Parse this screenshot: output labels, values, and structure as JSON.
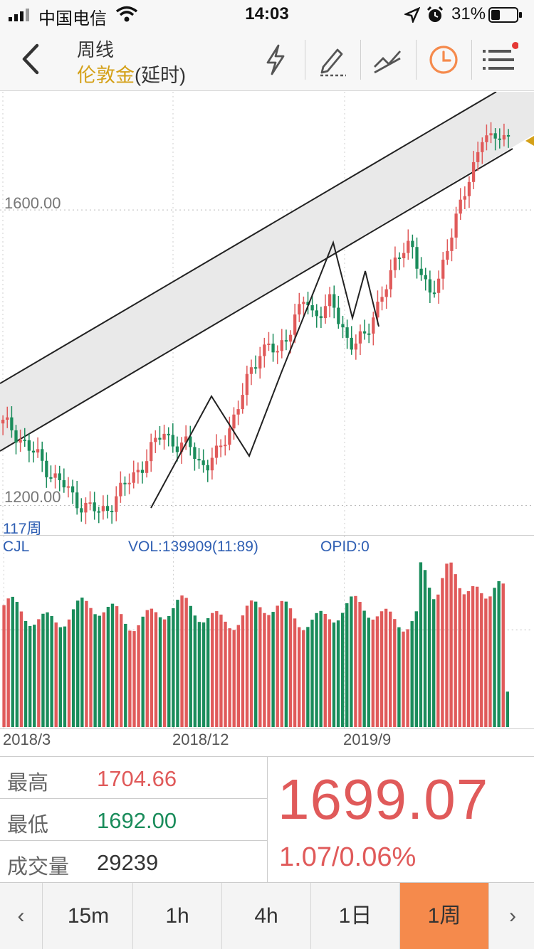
{
  "status_bar": {
    "carrier": "中国电信",
    "time": "14:03",
    "battery_percent": "31%",
    "icons": [
      "signal-icon",
      "wifi-icon",
      "location-icon",
      "alarm-icon",
      "battery-icon"
    ]
  },
  "nav": {
    "title": "周线",
    "instrument": "伦敦金",
    "delay_note": "(延时)",
    "tools": [
      "lightning-icon",
      "draw-pen-icon",
      "trendline-icon",
      "clock-icon",
      "menu-icon"
    ],
    "accent_color": "#f58a4c"
  },
  "chart": {
    "price_levels": [
      "1600.00",
      "1200.00"
    ],
    "period_count": "117周",
    "volume_indicator": "CJL",
    "volume_text": "VOL:139909(11:89)",
    "opid_text": "OPID:0",
    "dates": [
      "2018/3",
      "2018/12",
      "2019/9"
    ],
    "up_color": "#e05a5a",
    "down_color": "#1a8c5b"
  },
  "chart_data": {
    "type": "candlestick",
    "ylim": [
      1160,
      1760
    ],
    "x_labels": [
      "2018/3",
      "2018/12",
      "2019/9"
    ],
    "levels": [
      1600,
      1200
    ],
    "path_close": [
      1310,
      1305,
      1290,
      1275,
      1265,
      1250,
      1235,
      1225,
      1210,
      1200,
      1195,
      1190,
      1200,
      1215,
      1230,
      1245,
      1260,
      1280,
      1300,
      1290,
      1275,
      1285,
      1260,
      1255,
      1265,
      1290,
      1320,
      1350,
      1380,
      1410,
      1420,
      1400,
      1430,
      1460,
      1480,
      1450,
      1470,
      1480,
      1440,
      1420,
      1430,
      1425,
      1460,
      1500,
      1520,
      1540,
      1560,
      1520,
      1480,
      1500,
      1550,
      1580,
      1620,
      1660,
      1700,
      1690,
      1705,
      1699
    ],
    "volume_scale_note": "relative bars"
  },
  "quote": {
    "high_label": "最高",
    "high_value": "1704.66",
    "low_label": "最低",
    "low_value": "1692.00",
    "volume_label": "成交量",
    "volume_value": "29239",
    "last_price": "1699.07",
    "change": "1.07/0.06%",
    "up_color": "#e05a5a",
    "down_color": "#1a8c5b"
  },
  "tabs": {
    "items": [
      "15m",
      "1h",
      "4h",
      "1日",
      "1周"
    ],
    "active_index": 4,
    "prev_arrow": "‹",
    "next_arrow": "›"
  }
}
